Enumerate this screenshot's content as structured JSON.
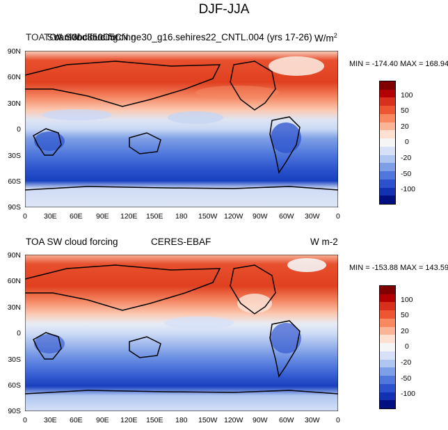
{
  "figure_title": "DJF-JJA",
  "panels": [
    {
      "left_title": "TOA SW cloud forcing",
      "overlap_title": "TOA SW cloud forcing",
      "center_title": "cam3bc850C5CN.ne30_g16.sehires22_CNTL.004 (yrs 17-26)",
      "units": "W/m",
      "units_sup": "2",
      "stats": "MIN = -174.40 MAX = 168.94"
    },
    {
      "left_title": "TOA SW cloud forcing",
      "center_title": "CERES-EBAF",
      "units": "W m-2",
      "stats": "MIN = -153.88 MAX = 143.59"
    }
  ],
  "lat_labels": [
    "90N",
    "60N",
    "30N",
    "0",
    "30S",
    "60S",
    "90S"
  ],
  "lon_labels": [
    "0",
    "30E",
    "60E",
    "90E",
    "120E",
    "150E",
    "180",
    "150W",
    "120W",
    "90W",
    "60W",
    "30W",
    "0"
  ],
  "colorbar": {
    "labels": [
      "100",
      "50",
      "20",
      "0",
      "-20",
      "-50",
      "-100"
    ],
    "colors": [
      "#800000",
      "#b30000",
      "#d9301e",
      "#ee5533",
      "#f78860",
      "#fbb596",
      "#fde0cf",
      "#f5f5f5",
      "#d6e1f7",
      "#aec6f0",
      "#7d9fe8",
      "#4f77dc",
      "#2b52cc",
      "#1332b3",
      "#000f80"
    ]
  }
}
